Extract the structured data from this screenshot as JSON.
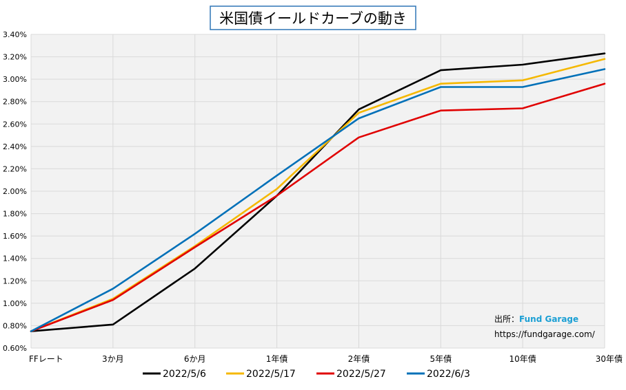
{
  "chart_data": {
    "type": "line",
    "title": "米国債イールドカーブの動き",
    "xlabel": "",
    "ylabel": "",
    "categories": [
      "FFレート",
      "3か月",
      "6か月",
      "1年債",
      "2年債",
      "5年債",
      "10年債",
      "30年債"
    ],
    "ylim": [
      0.6,
      3.4
    ],
    "ytick_step": 0.2,
    "ytick_labels": [
      "0.60%",
      "0.80%",
      "1.00%",
      "1.20%",
      "1.40%",
      "1.60%",
      "1.80%",
      "2.00%",
      "2.20%",
      "2.40%",
      "2.60%",
      "2.80%",
      "3.00%",
      "3.20%",
      "3.40%"
    ],
    "grid": true,
    "legend_position": "bottom",
    "series": [
      {
        "name": "2022/5/6",
        "color": "#000000",
        "values": [
          0.75,
          0.81,
          1.31,
          1.96,
          2.73,
          3.08,
          3.13,
          3.23
        ]
      },
      {
        "name": "2022/5/17",
        "color": "#f5b800",
        "values": [
          0.75,
          1.04,
          1.51,
          2.02,
          2.7,
          2.96,
          2.99,
          3.18
        ]
      },
      {
        "name": "2022/5/27",
        "color": "#e00000",
        "values": [
          0.75,
          1.03,
          1.5,
          1.96,
          2.48,
          2.72,
          2.74,
          2.96
        ]
      },
      {
        "name": "2022/6/3",
        "color": "#0070b8",
        "values": [
          0.75,
          1.13,
          1.62,
          2.14,
          2.65,
          2.93,
          2.93,
          3.09
        ]
      }
    ],
    "annotation": {
      "source_label": "出所：",
      "source_name": "Fund Garage",
      "source_name_color": "#1a9fd4",
      "url": "https://fundgarage.com/"
    }
  },
  "colors": {
    "plot_background": "#f2f2f2",
    "gridline": "#d9d9d9",
    "title_border": "#2e75b6"
  }
}
